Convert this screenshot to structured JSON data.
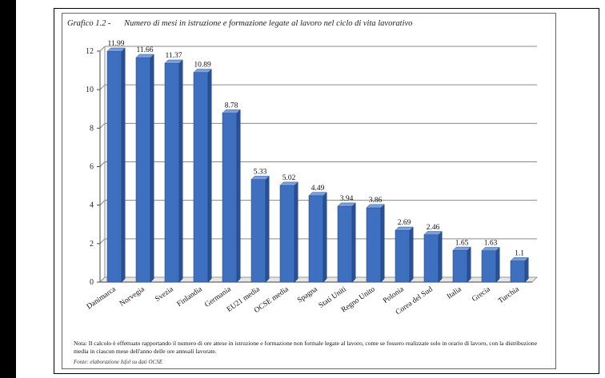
{
  "figure": {
    "number": "Grafico 1.2 -",
    "title": "Numero di mesi in istruzione e formazione legate al lavoro nel ciclo di vita lavorativo"
  },
  "chart_data": {
    "type": "bar",
    "title": "Numero di mesi in istruzione e formazione legate al lavoro nel ciclo di vita lavorativo",
    "categories": [
      "Danimarca",
      "Norvegia",
      "Svezia",
      "Finlandia",
      "Germania",
      "EU21 media",
      "OCSE media",
      "Spagna",
      "Stati Uniti",
      "Regno Unito",
      "Polonia",
      "Corea del Sud",
      "Italia",
      "Grecia",
      "Turchia"
    ],
    "values": [
      11.99,
      11.66,
      11.37,
      10.89,
      8.78,
      5.33,
      5.02,
      4.49,
      3.94,
      3.86,
      2.69,
      2.46,
      1.65,
      1.63,
      1.1
    ],
    "labels": [
      "11.99",
      "11.66",
      "11.37",
      "10.89",
      "8.78",
      "5.33",
      "5.02",
      "4.49",
      "3.94",
      "3.86",
      "2.69",
      "2.46",
      "1.65",
      "1.63",
      "1.1"
    ],
    "ylim": [
      0,
      12
    ],
    "yticks": [
      "0",
      "2",
      "4",
      "6",
      "8",
      "10",
      "12"
    ],
    "grid": true,
    "bar_color": "#3f6fbf",
    "xlabel": "",
    "ylabel": ""
  },
  "note": "Nota: Il calcolo è effettuato rapportando il numero di ore attese in istruzione e formazione non formale legate al lavoro, come se fossero realizzate solo in orario di lavoro, con la distribuzione media in ciascun mese dell'anno delle ore annuali lavorate.",
  "source": "Fonte: elaborazione Isfol su dati OCSE"
}
